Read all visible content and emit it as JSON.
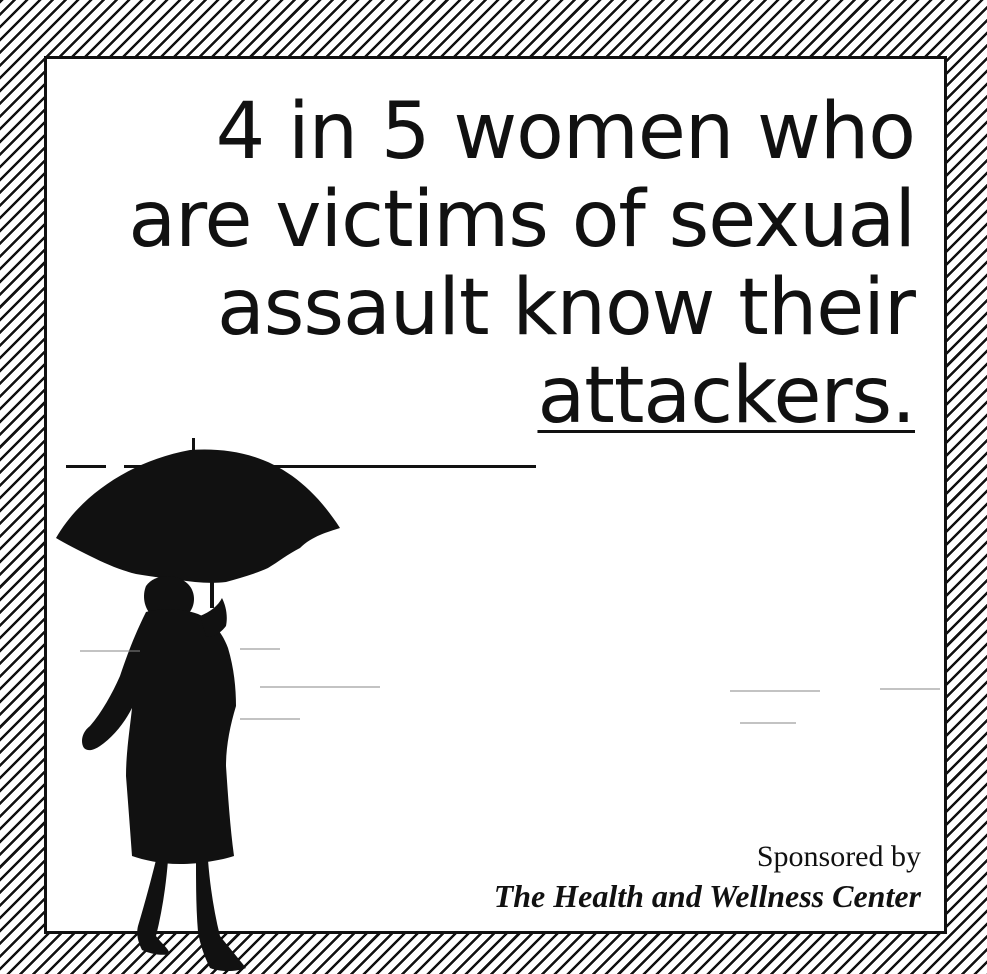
{
  "headline": {
    "lines": [
      "4 in 5 women who",
      "are victims of sexual",
      "assault know their",
      "attackers."
    ]
  },
  "sponsor": {
    "prefix": "Sponsored by",
    "organization": "The Health and Wellness Center"
  },
  "colors": {
    "ink": "#111111",
    "paper": "#ffffff"
  },
  "icons": {
    "figure": "woman-with-umbrella-silhouette"
  }
}
